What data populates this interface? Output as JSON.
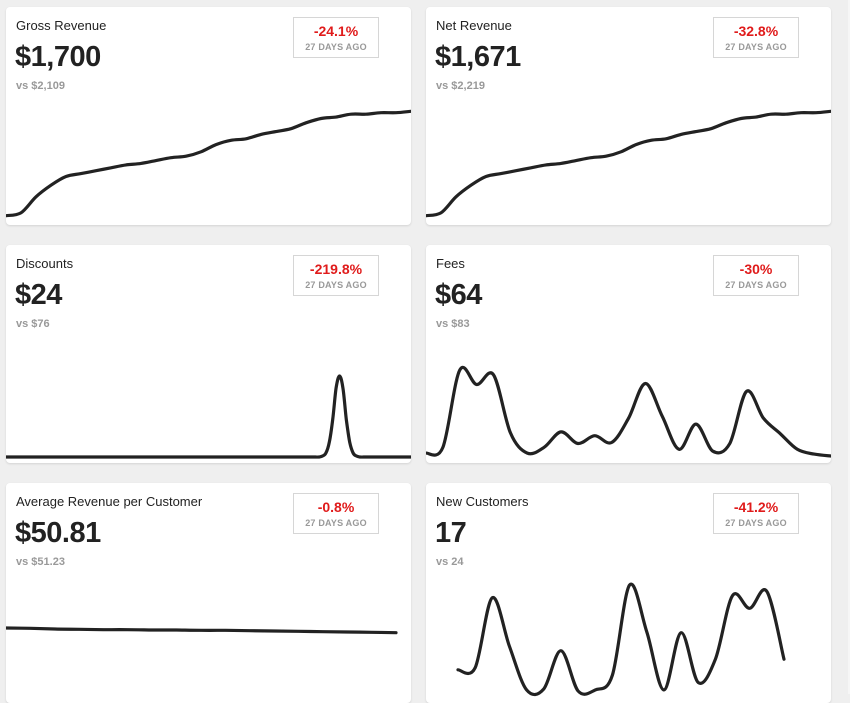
{
  "colors": {
    "negative": "#e01b1b",
    "muted": "#999999",
    "text": "#222222",
    "card_bg": "#ffffff",
    "page_bg": "#efefef"
  },
  "cards": [
    {
      "key": "gross_revenue",
      "title": "Gross Revenue",
      "value": "$1,700",
      "compare": "vs $2,109",
      "change": "-24.1%",
      "period": "27 DAYS AGO",
      "trend": [
        3,
        5,
        16,
        24,
        30,
        32,
        34,
        36,
        38,
        39,
        41,
        43,
        44,
        47,
        52,
        55,
        56,
        59,
        61,
        63,
        67,
        70,
        71,
        73,
        73,
        74,
        74,
        75
      ]
    },
    {
      "key": "net_revenue",
      "title": "Net Revenue",
      "value": "$1,671",
      "compare": "vs $2,219",
      "change": "-32.8%",
      "period": "27 DAYS AGO",
      "trend": [
        3,
        5,
        16,
        24,
        30,
        32,
        34,
        36,
        38,
        39,
        41,
        43,
        44,
        47,
        52,
        55,
        56,
        59,
        61,
        63,
        67,
        70,
        71,
        73,
        73,
        74,
        74,
        75
      ]
    },
    {
      "key": "discounts",
      "title": "Discounts",
      "value": "$24",
      "compare": "vs $76",
      "change": "-219.8%",
      "period": "27 DAYS AGO",
      "trend": [
        0,
        0,
        0,
        0,
        0,
        0,
        0,
        0,
        0,
        0,
        0,
        0,
        0,
        0,
        0,
        0,
        0,
        0,
        0,
        0,
        0,
        0,
        0,
        0,
        0,
        0,
        0,
        0,
        0,
        0,
        0,
        0,
        0,
        0,
        0,
        0,
        0,
        0,
        0,
        0,
        0,
        0,
        0,
        0,
        0,
        0,
        0,
        0,
        0,
        0,
        0,
        0,
        0,
        0,
        0,
        0,
        0,
        0,
        0,
        0,
        0,
        0,
        0,
        0,
        0,
        0,
        0,
        0,
        0,
        0,
        0,
        0,
        0,
        0,
        0,
        0,
        0,
        0,
        0,
        0,
        0,
        0,
        0,
        0,
        0,
        0,
        0,
        0,
        0,
        0,
        0,
        0,
        0,
        1,
        4,
        15,
        38,
        70,
        82,
        70,
        38,
        15,
        4,
        1,
        0,
        0,
        0,
        0,
        0,
        0,
        0,
        0,
        0,
        0,
        0,
        0,
        0,
        0,
        0,
        0
      ]
    },
    {
      "key": "fees",
      "title": "Fees",
      "value": "$64",
      "compare": "vs $83",
      "change": "-30%",
      "period": "27 DAYS AGO",
      "trend": [
        4,
        10,
        90,
        75,
        85,
        25,
        4,
        10,
        26,
        14,
        22,
        15,
        40,
        76,
        42,
        8,
        34,
        6,
        14,
        68,
        40,
        24,
        8,
        3,
        1
      ]
    },
    {
      "key": "average_revenue_per_customer",
      "title": "Average Revenue per Customer",
      "value": "$50.81",
      "compare": "vs $51.23",
      "change": "-0.8%",
      "period": "27 DAYS AGO",
      "trend": [
        50.95,
        50.94,
        50.92,
        50.91,
        50.9,
        50.9,
        50.89,
        50.89,
        50.88,
        50.88,
        50.87,
        50.86,
        50.85,
        50.84,
        50.83,
        50.82,
        50.81
      ]
    },
    {
      "key": "new_customers",
      "title": "New Customers",
      "value": "17",
      "compare": "vs 24",
      "change": "-41.2%",
      "period": "27 DAYS AGO",
      "trend": [
        20,
        22,
        88,
        42,
        1,
        2,
        38,
        0,
        1,
        15,
        100,
        56,
        1,
        55,
        8,
        30,
        90,
        78,
        94,
        30
      ]
    }
  ]
}
